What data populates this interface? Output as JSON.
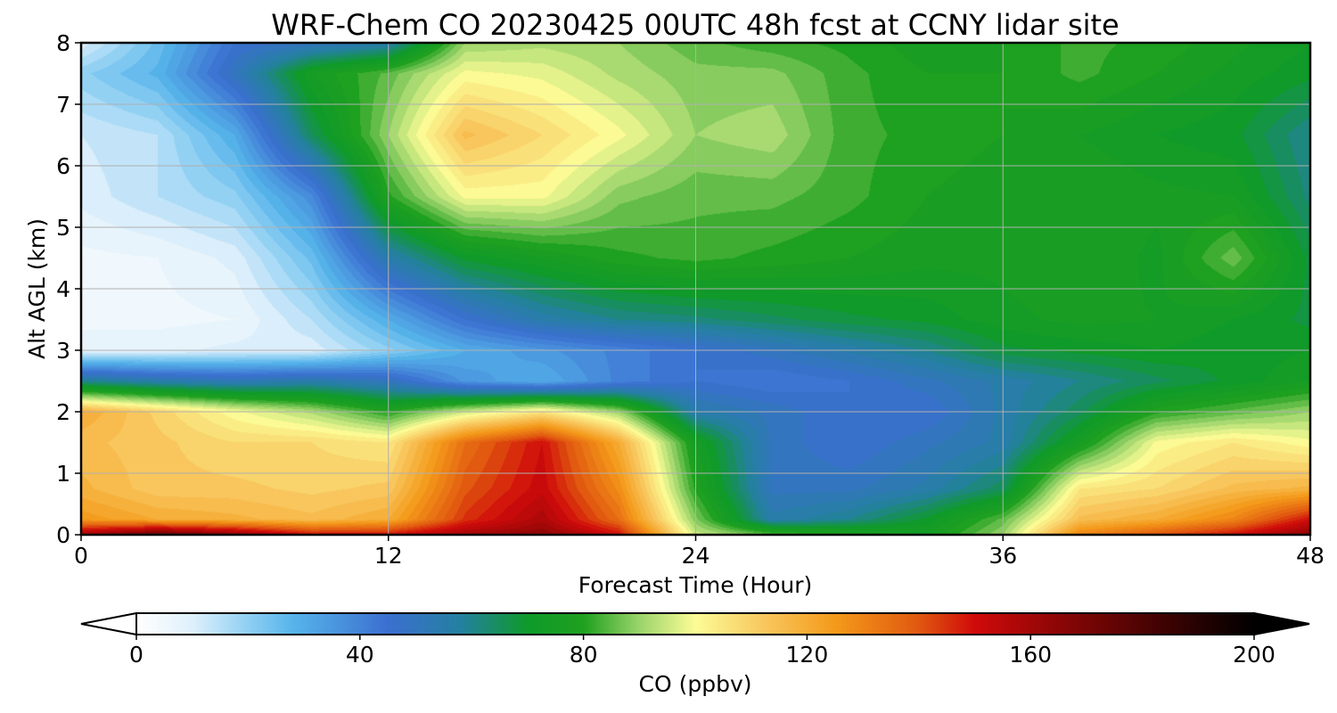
{
  "chart_data": {
    "type": "heatmap",
    "title": "WRF-Chem CO  20230425 00UTC 48h fcst at CCNY lidar site",
    "xlabel": "Forecast Time (Hour)",
    "ylabel": "Alt AGL (km)",
    "xlim": [
      0,
      48
    ],
    "ylim": [
      0,
      8
    ],
    "x_ticks": [
      "0",
      "12",
      "24",
      "36",
      "48"
    ],
    "y_ticks": [
      "0",
      "1",
      "2",
      "3",
      "4",
      "5",
      "6",
      "7",
      "8"
    ],
    "grid": true,
    "colorbar": {
      "label": "CO  (ppbv)",
      "range": [
        0,
        200
      ],
      "ticks": [
        "0",
        "40",
        "80",
        "120",
        "160",
        "200"
      ],
      "extend": "both",
      "color_stops": [
        {
          "value": 0,
          "color": "#ffffff"
        },
        {
          "value": 10,
          "color": "#dff0fb"
        },
        {
          "value": 20,
          "color": "#8fcff3"
        },
        {
          "value": 28,
          "color": "#56b4ea"
        },
        {
          "value": 45,
          "color": "#3b6fd0"
        },
        {
          "value": 58,
          "color": "#2480a0"
        },
        {
          "value": 70,
          "color": "#0e9a2a"
        },
        {
          "value": 80,
          "color": "#1fa01f"
        },
        {
          "value": 90,
          "color": "#9ad46a"
        },
        {
          "value": 100,
          "color": "#fcfc96"
        },
        {
          "value": 112,
          "color": "#f8c860"
        },
        {
          "value": 125,
          "color": "#f49a1a"
        },
        {
          "value": 140,
          "color": "#e05810"
        },
        {
          "value": 150,
          "color": "#d00a0a"
        },
        {
          "value": 165,
          "color": "#8c0606"
        },
        {
          "value": 185,
          "color": "#3a0202"
        },
        {
          "value": 200,
          "color": "#000000"
        }
      ]
    },
    "x_hours": [
      0,
      3,
      6,
      9,
      12,
      15,
      18,
      21,
      24,
      27,
      30,
      33,
      36,
      39,
      42,
      45,
      48
    ],
    "y_km": [
      0,
      0.25,
      0.75,
      1.5,
      2.0,
      2.5,
      3.0,
      3.5,
      4.5,
      5.5,
      6.5,
      7.5,
      8.0
    ],
    "co_ppbv": [
      [
        160,
        175,
        165,
        150,
        150,
        160,
        165,
        150,
        95,
        85,
        80,
        75,
        90,
        130,
        140,
        150,
        165
      ],
      [
        125,
        120,
        118,
        115,
        120,
        145,
        158,
        135,
        88,
        55,
        60,
        70,
        85,
        115,
        120,
        130,
        150
      ],
      [
        118,
        112,
        112,
        110,
        112,
        140,
        152,
        128,
        80,
        50,
        50,
        55,
        65,
        105,
        108,
        115,
        118
      ],
      [
        115,
        112,
        108,
        108,
        105,
        135,
        150,
        120,
        75,
        50,
        45,
        50,
        55,
        75,
        100,
        105,
        100
      ],
      [
        120,
        110,
        100,
        92,
        80,
        95,
        105,
        90,
        55,
        50,
        45,
        45,
        55,
        65,
        80,
        85,
        90
      ],
      [
        60,
        55,
        52,
        55,
        50,
        35,
        30,
        40,
        45,
        42,
        45,
        50,
        55,
        60,
        65,
        70,
        75
      ],
      [
        8,
        8,
        10,
        10,
        20,
        30,
        35,
        40,
        45,
        50,
        55,
        60,
        68,
        70,
        72,
        70,
        72
      ],
      [
        5,
        5,
        6,
        15,
        30,
        45,
        55,
        60,
        62,
        65,
        68,
        70,
        74,
        76,
        75,
        72,
        68
      ],
      [
        5,
        6,
        10,
        25,
        55,
        70,
        75,
        80,
        82,
        80,
        78,
        76,
        76,
        78,
        74,
        86,
        68
      ],
      [
        10,
        15,
        20,
        38,
        80,
        100,
        100,
        88,
        85,
        85,
        82,
        78,
        76,
        78,
        76,
        75,
        62
      ],
      [
        12,
        15,
        30,
        65,
        90,
        115,
        108,
        100,
        90,
        92,
        82,
        80,
        78,
        75,
        72,
        70,
        60
      ],
      [
        20,
        28,
        50,
        75,
        85,
        100,
        98,
        92,
        88,
        88,
        82,
        78,
        78,
        82,
        78,
        74,
        70
      ],
      [
        10,
        25,
        45,
        50,
        55,
        90,
        92,
        90,
        85,
        82,
        80,
        76,
        78,
        82,
        80,
        76,
        72
      ]
    ]
  }
}
